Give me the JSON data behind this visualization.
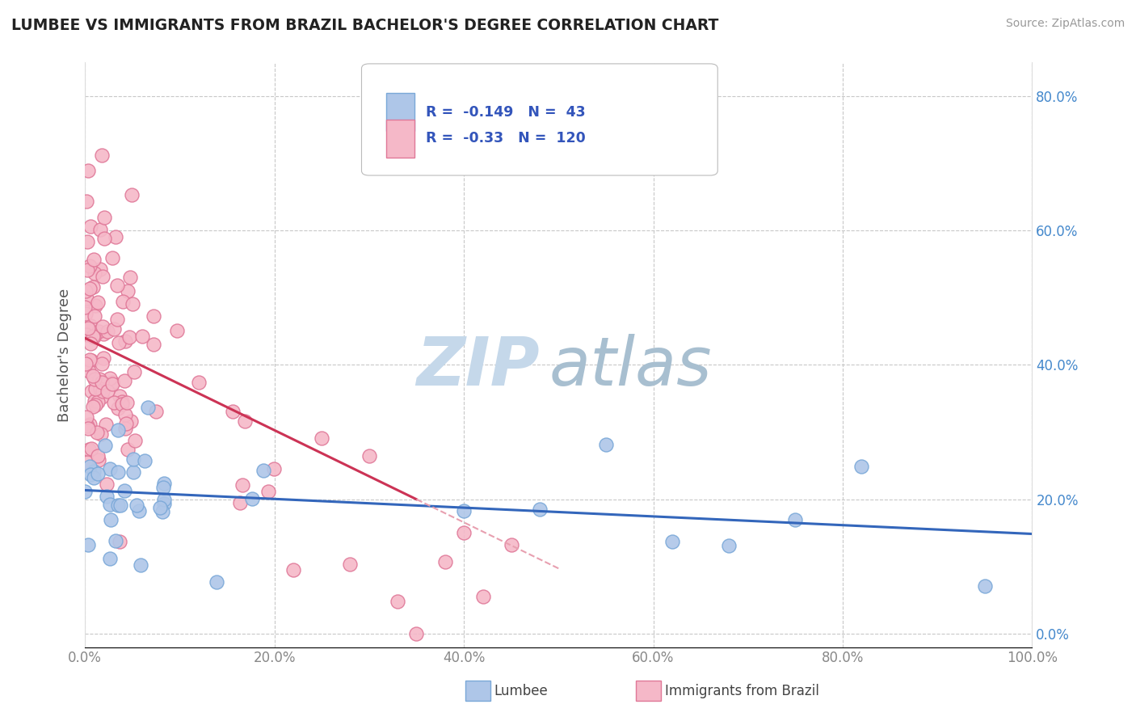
{
  "title": "LUMBEE VS IMMIGRANTS FROM BRAZIL BACHELOR'S DEGREE CORRELATION CHART",
  "source": "Source: ZipAtlas.com",
  "ylabel": "Bachelor's Degree",
  "legend_labels": [
    "Lumbee",
    "Immigrants from Brazil"
  ],
  "legend_r": [
    -0.149,
    -0.33
  ],
  "legend_n": [
    43,
    120
  ],
  "lumbee_color": "#aec6e8",
  "brazil_color": "#f5b8c8",
  "lumbee_edge": "#7aA8d8",
  "brazil_edge": "#e07898",
  "trendline_lumbee": "#3366bb",
  "trendline_brazil": "#cc3355",
  "trendline_brazil_ext": "#e8a0b0",
  "background": "#ffffff",
  "grid_color": "#c8c8c8",
  "watermark_zip": "ZIP",
  "watermark_atlas": "atlas",
  "watermark_zip_color": "#c5d8ea",
  "watermark_atlas_color": "#a8bfd0",
  "xlim": [
    0,
    100
  ],
  "ylim": [
    -2,
    85
  ],
  "yticks": [
    0,
    20,
    40,
    60,
    80
  ],
  "ytick_labels": [
    "0.0%",
    "20.0%",
    "40.0%",
    "60.0%",
    "80.0%"
  ],
  "xticks": [
    0,
    20,
    40,
    60,
    80,
    100
  ],
  "xtick_labels": [
    "0.0%",
    "20.0%",
    "40.0%",
    "60.0%",
    "80.0%",
    "100.0%"
  ]
}
